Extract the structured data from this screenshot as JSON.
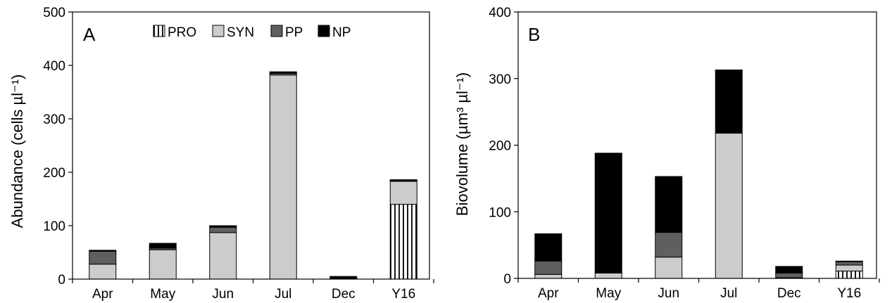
{
  "colors": {
    "PRO": "url(#pro-pattern)",
    "SYN": "#cccccc",
    "PP": "#5f5f5f",
    "NP": "#000000"
  },
  "chart_data": [
    {
      "type": "bar",
      "stacked": true,
      "panel_label": "A",
      "ylabel": "Abundance (cells µl⁻¹)",
      "ylim": [
        0,
        500
      ],
      "yticks": [
        0,
        100,
        200,
        300,
        400,
        500
      ],
      "categories": [
        "Apr",
        "May",
        "Jun",
        "Jul",
        "Dec",
        "Y16"
      ],
      "legend": [
        "PRO",
        "SYN",
        "PP",
        "NP"
      ],
      "legend_placement": "top",
      "series": [
        {
          "name": "PRO",
          "values": [
            0,
            0,
            0,
            0,
            0,
            140
          ]
        },
        {
          "name": "SYN",
          "values": [
            28,
            55,
            87,
            382,
            0,
            43
          ]
        },
        {
          "name": "PP",
          "values": [
            24,
            3,
            10,
            3,
            1,
            1
          ]
        },
        {
          "name": "NP",
          "values": [
            2,
            9,
            3,
            3,
            4,
            2
          ]
        }
      ]
    },
    {
      "type": "bar",
      "stacked": true,
      "panel_label": "B",
      "ylabel": "Biovolume (µm³ µl⁻¹)",
      "ylim": [
        0,
        400
      ],
      "yticks": [
        0,
        100,
        200,
        300,
        400
      ],
      "categories": [
        "Apr",
        "May",
        "Jun",
        "Jul",
        "Dec",
        "Y16"
      ],
      "series": [
        {
          "name": "PRO",
          "values": [
            0,
            0,
            0,
            0,
            0,
            11
          ]
        },
        {
          "name": "SYN",
          "values": [
            6,
            8,
            32,
            218,
            1,
            9
          ]
        },
        {
          "name": "PP",
          "values": [
            20,
            0,
            37,
            0,
            7,
            5
          ]
        },
        {
          "name": "NP",
          "values": [
            41,
            180,
            84,
            95,
            10,
            1
          ]
        }
      ]
    }
  ]
}
